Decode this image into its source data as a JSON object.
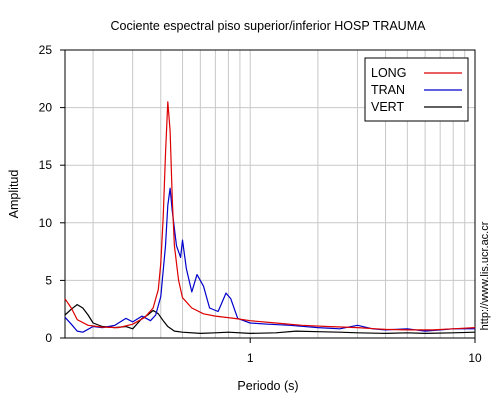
{
  "chart_data": {
    "type": "line",
    "title": "Cociente espectral piso superior/inferior  HOSP TRAUMA",
    "xlabel": "Periodo (s)",
    "ylabel": "Amplitud",
    "xscale": "log",
    "xlim": [
      0.15,
      10
    ],
    "ylim": [
      0,
      25
    ],
    "x_ticks": [
      1,
      10
    ],
    "x_tick_labels": [
      "1",
      "10"
    ],
    "y_ticks": [
      0,
      5,
      10,
      15,
      20,
      25
    ],
    "y_tick_labels": [
      "0",
      "5",
      "10",
      "15",
      "20",
      "25"
    ],
    "grid": true,
    "legend_position": "top-right",
    "side_text": "http://www.lis.ucr.ac.cr",
    "series": [
      {
        "name": "LONG",
        "color": "#dd0000",
        "points": [
          [
            0.15,
            3.4
          ],
          [
            0.16,
            2.6
          ],
          [
            0.17,
            1.6
          ],
          [
            0.19,
            1.1
          ],
          [
            0.22,
            0.95
          ],
          [
            0.26,
            0.9
          ],
          [
            0.3,
            1.2
          ],
          [
            0.34,
            1.8
          ],
          [
            0.37,
            2.6
          ],
          [
            0.39,
            4.2
          ],
          [
            0.4,
            6.5
          ],
          [
            0.41,
            10.5
          ],
          [
            0.42,
            16.0
          ],
          [
            0.43,
            20.5
          ],
          [
            0.44,
            18.0
          ],
          [
            0.45,
            12.0
          ],
          [
            0.46,
            8.0
          ],
          [
            0.48,
            5.0
          ],
          [
            0.5,
            3.5
          ],
          [
            0.55,
            2.6
          ],
          [
            0.62,
            2.1
          ],
          [
            0.7,
            1.9
          ],
          [
            0.85,
            1.7
          ],
          [
            1.0,
            1.5
          ],
          [
            1.3,
            1.3
          ],
          [
            1.7,
            1.1
          ],
          [
            2.2,
            1.0
          ],
          [
            3.0,
            0.9
          ],
          [
            4.0,
            0.75
          ],
          [
            5.0,
            0.7
          ],
          [
            6.5,
            0.7
          ],
          [
            8.0,
            0.8
          ],
          [
            10.0,
            0.9
          ]
        ]
      },
      {
        "name": "TRAN",
        "color": "#0000cc",
        "points": [
          [
            0.15,
            1.8
          ],
          [
            0.16,
            1.2
          ],
          [
            0.17,
            0.6
          ],
          [
            0.18,
            0.5
          ],
          [
            0.2,
            1.0
          ],
          [
            0.22,
            0.9
          ],
          [
            0.25,
            1.1
          ],
          [
            0.28,
            1.7
          ],
          [
            0.3,
            1.4
          ],
          [
            0.33,
            1.9
          ],
          [
            0.36,
            1.5
          ],
          [
            0.38,
            2.0
          ],
          [
            0.4,
            3.6
          ],
          [
            0.42,
            8.0
          ],
          [
            0.43,
            11.5
          ],
          [
            0.44,
            13.0
          ],
          [
            0.45,
            11.0
          ],
          [
            0.47,
            8.0
          ],
          [
            0.49,
            7.0
          ],
          [
            0.5,
            8.5
          ],
          [
            0.52,
            6.0
          ],
          [
            0.55,
            4.0
          ],
          [
            0.58,
            5.5
          ],
          [
            0.62,
            4.5
          ],
          [
            0.66,
            2.6
          ],
          [
            0.72,
            2.3
          ],
          [
            0.78,
            3.9
          ],
          [
            0.82,
            3.4
          ],
          [
            0.88,
            1.7
          ],
          [
            1.0,
            1.3
          ],
          [
            1.2,
            1.2
          ],
          [
            1.5,
            1.1
          ],
          [
            2.0,
            0.9
          ],
          [
            2.5,
            0.8
          ],
          [
            3.0,
            1.1
          ],
          [
            3.5,
            0.8
          ],
          [
            4.0,
            0.7
          ],
          [
            5.0,
            0.8
          ],
          [
            6.0,
            0.6
          ],
          [
            7.0,
            0.7
          ],
          [
            8.0,
            0.8
          ],
          [
            10.0,
            0.8
          ]
        ]
      },
      {
        "name": "VERT",
        "color": "#000000",
        "points": [
          [
            0.15,
            2.0
          ],
          [
            0.16,
            2.5
          ],
          [
            0.17,
            2.9
          ],
          [
            0.18,
            2.6
          ],
          [
            0.19,
            2.0
          ],
          [
            0.2,
            1.3
          ],
          [
            0.22,
            1.0
          ],
          [
            0.25,
            0.9
          ],
          [
            0.28,
            1.0
          ],
          [
            0.3,
            0.8
          ],
          [
            0.33,
            1.7
          ],
          [
            0.35,
            2.0
          ],
          [
            0.37,
            2.4
          ],
          [
            0.39,
            2.1
          ],
          [
            0.41,
            1.5
          ],
          [
            0.43,
            1.0
          ],
          [
            0.46,
            0.6
          ],
          [
            0.5,
            0.5
          ],
          [
            0.6,
            0.4
          ],
          [
            0.7,
            0.45
          ],
          [
            0.8,
            0.5
          ],
          [
            1.0,
            0.4
          ],
          [
            1.3,
            0.45
          ],
          [
            1.6,
            0.6
          ],
          [
            2.0,
            0.55
          ],
          [
            2.5,
            0.5
          ],
          [
            3.0,
            0.45
          ],
          [
            4.0,
            0.4
          ],
          [
            5.0,
            0.45
          ],
          [
            6.0,
            0.4
          ],
          [
            8.0,
            0.45
          ],
          [
            10.0,
            0.5
          ]
        ]
      }
    ]
  }
}
